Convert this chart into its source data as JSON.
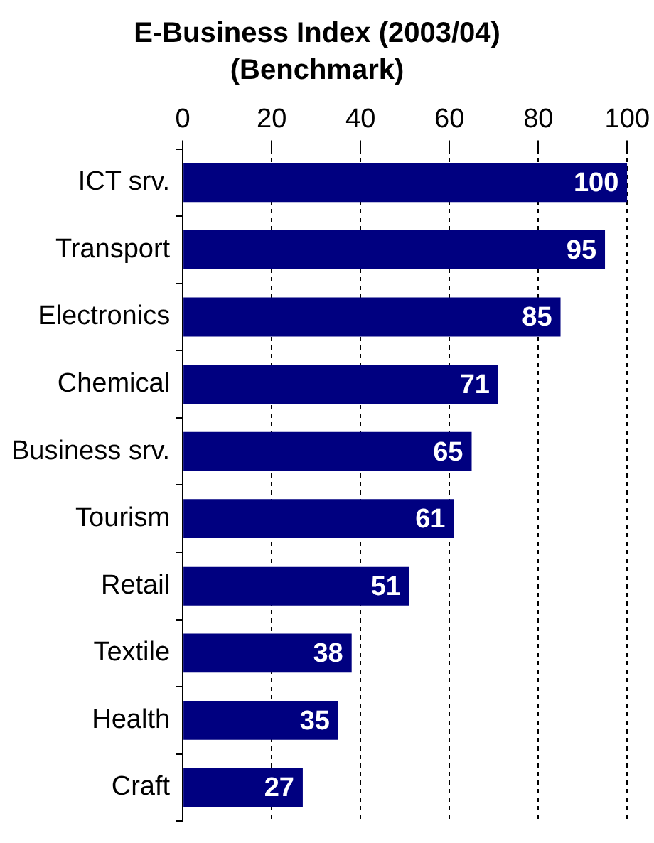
{
  "chart_data": {
    "type": "bar",
    "orientation": "horizontal",
    "title": "E-Business Index (2003/04)",
    "subtitle": "(Benchmark)",
    "categories": [
      "ICT srv.",
      "Transport",
      "Electronics",
      "Chemical",
      "Business srv.",
      "Tourism",
      "Retail",
      "Textile",
      "Health",
      "Craft"
    ],
    "values": [
      100,
      95,
      85,
      71,
      65,
      61,
      51,
      38,
      35,
      27
    ],
    "color": "#000080",
    "xlim": [
      0,
      100
    ],
    "xticks": [
      0,
      20,
      40,
      60,
      80,
      100
    ],
    "grid": "x",
    "data_labels": true,
    "legend": false
  }
}
